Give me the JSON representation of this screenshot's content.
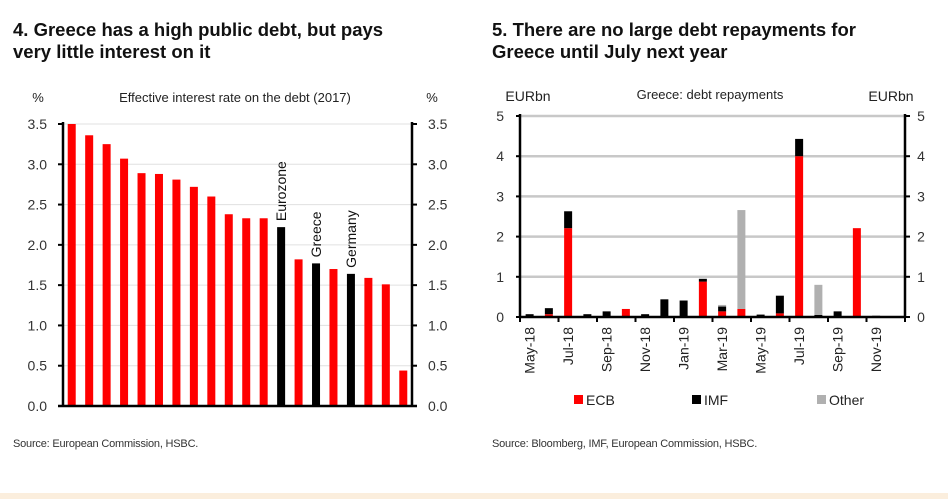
{
  "chart_data": [
    {
      "type": "bar",
      "title": "4. Greece has a high public debt, but pays very little interest on it",
      "title_lines": [
        "4. Greece has a high public debt, but pays",
        "very little interest on it"
      ],
      "subtitle": "Effective interest rate on the debt (2017)",
      "ylabel_left": "%",
      "ylabel_right": "%",
      "xlabel": "",
      "ylim": [
        0,
        3.5
      ],
      "yticks": [
        "0.0",
        "0.5",
        "1.0",
        "1.5",
        "2.0",
        "2.5",
        "3.0",
        "3.5"
      ],
      "ytick_values": [
        0,
        0.5,
        1.0,
        1.5,
        2.0,
        2.5,
        3.0,
        3.5
      ],
      "grid": true,
      "bar_colors": {
        "default": "#ff0000",
        "highlight": "#000000"
      },
      "bars": [
        {
          "label": "",
          "value": 3.5,
          "highlight": false
        },
        {
          "label": "",
          "value": 3.36,
          "highlight": false
        },
        {
          "label": "",
          "value": 3.25,
          "highlight": false
        },
        {
          "label": "",
          "value": 3.07,
          "highlight": false
        },
        {
          "label": "",
          "value": 2.89,
          "highlight": false
        },
        {
          "label": "",
          "value": 2.88,
          "highlight": false
        },
        {
          "label": "",
          "value": 2.81,
          "highlight": false
        },
        {
          "label": "",
          "value": 2.72,
          "highlight": false
        },
        {
          "label": "",
          "value": 2.6,
          "highlight": false
        },
        {
          "label": "",
          "value": 2.38,
          "highlight": false
        },
        {
          "label": "",
          "value": 2.33,
          "highlight": false
        },
        {
          "label": "",
          "value": 2.33,
          "highlight": false
        },
        {
          "label": "Eurozone",
          "value": 2.22,
          "highlight": true
        },
        {
          "label": "",
          "value": 1.82,
          "highlight": false
        },
        {
          "label": "Greece",
          "value": 1.77,
          "highlight": true
        },
        {
          "label": "",
          "value": 1.7,
          "highlight": false
        },
        {
          "label": "Germany",
          "value": 1.64,
          "highlight": true
        },
        {
          "label": "",
          "value": 1.59,
          "highlight": false
        },
        {
          "label": "",
          "value": 1.51,
          "highlight": false
        },
        {
          "label": "",
          "value": 0.44,
          "highlight": false
        }
      ],
      "source": "Source: European Commission, HSBC."
    },
    {
      "type": "bar",
      "stacked": true,
      "title": "5. There are no large debt repayments for Greece until July next year",
      "title_lines": [
        "5. There are no large debt repayments for",
        "Greece until July next year"
      ],
      "subtitle": "Greece: debt repayments",
      "ylabel_left": "EURbn",
      "ylabel_right": "EURbn",
      "xlabel": "",
      "ylim": [
        0,
        5
      ],
      "yticks": [
        "0",
        "1",
        "2",
        "3",
        "4",
        "5"
      ],
      "ytick_values": [
        0,
        1,
        2,
        3,
        4,
        5
      ],
      "grid": true,
      "categories": [
        "May-18",
        "Jun-18",
        "Jul-18",
        "Aug-18",
        "Sep-18",
        "Oct-18",
        "Nov-18",
        "Dec-18",
        "Jan-19",
        "Feb-19",
        "Mar-19",
        "Apr-19",
        "May-19",
        "Jun-19",
        "Jul-19",
        "Aug-19",
        "Sep-19",
        "Oct-19",
        "Nov-19",
        "Dec-19"
      ],
      "xtick_labels": [
        "May-18",
        "Jul-18",
        "Sep-18",
        "Nov-18",
        "Jan-19",
        "Mar-19",
        "May-19",
        "Jul-19",
        "Sep-19",
        "Nov-19"
      ],
      "series": [
        {
          "name": "ECB",
          "color": "#ff0000",
          "values": [
            0,
            0.07,
            2.21,
            0,
            0,
            0.2,
            0,
            0,
            0,
            0.88,
            0.14,
            0.2,
            0,
            0.09,
            4.0,
            0,
            0,
            2.21,
            0,
            0
          ]
        },
        {
          "name": "IMF",
          "color": "#000000",
          "values": [
            0.07,
            0.15,
            0.42,
            0.07,
            0.14,
            0,
            0.07,
            0.44,
            0.41,
            0.07,
            0.12,
            0,
            0.06,
            0.44,
            0.43,
            0.05,
            0.14,
            0,
            0,
            0
          ]
        },
        {
          "name": "Other",
          "color": "#b0b0b0",
          "values": [
            0,
            0,
            0,
            0,
            0,
            0,
            0,
            0,
            0,
            0,
            0.04,
            2.46,
            0,
            0,
            0,
            0.75,
            0,
            0,
            0.04,
            0
          ]
        }
      ],
      "legend": {
        "position": "bottom",
        "entries": [
          "ECB",
          "IMF",
          "Other"
        ]
      },
      "source": "Source: Bloomberg, IMF, European Commission, HSBC."
    }
  ]
}
